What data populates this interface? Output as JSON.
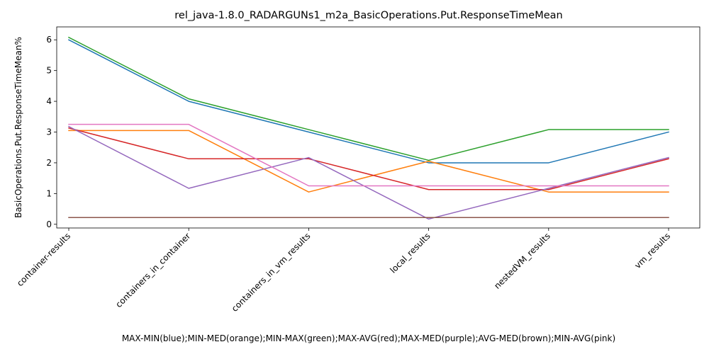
{
  "chart_data": {
    "type": "line",
    "title": "rel_java-1.8.0_RADARGUNs1_m2a_BasicOperations.Put.ResponseTimeMean",
    "xlabel": "MAX-MIN(blue);MIN-MED(orange);MIN-MAX(green);MAX-AVG(red);MAX-MED(purple);AVG-MED(brown);MIN-AVG(pink)",
    "ylabel": "BasicOperations.Put.ResponseTimeMean%",
    "categories": [
      "container-results",
      "containers_in_container",
      "containers_in_vm_results",
      "local_results",
      "nestedVM_results",
      "vm_results"
    ],
    "yticks": [
      "0",
      "1",
      "2",
      "3",
      "4",
      "5",
      "6"
    ],
    "ylim": [
      -0.12,
      6.42
    ],
    "grid": false,
    "legend": "none",
    "series": [
      {
        "color": "#1f77b4",
        "values": [
          6.0,
          4.0,
          3.0,
          2.0,
          2.0,
          3.0
        ]
      },
      {
        "color": "#ff7f0e",
        "values": [
          3.05,
          3.05,
          1.05,
          2.05,
          1.05,
          1.05
        ]
      },
      {
        "color": "#2ca02c",
        "values": [
          6.08,
          4.08,
          3.08,
          2.08,
          3.08,
          3.08
        ]
      },
      {
        "color": "#d62728",
        "values": [
          3.13,
          2.13,
          2.13,
          1.13,
          1.13,
          2.13
        ]
      },
      {
        "color": "#9467bd",
        "values": [
          3.18,
          1.17,
          2.17,
          0.17,
          1.17,
          2.17
        ]
      },
      {
        "color": "#8c564b",
        "values": [
          0.22,
          0.22,
          0.22,
          0.22,
          0.22,
          0.22
        ]
      },
      {
        "color": "#e377c2",
        "values": [
          3.25,
          3.25,
          1.25,
          1.25,
          1.25,
          1.25
        ]
      }
    ]
  }
}
